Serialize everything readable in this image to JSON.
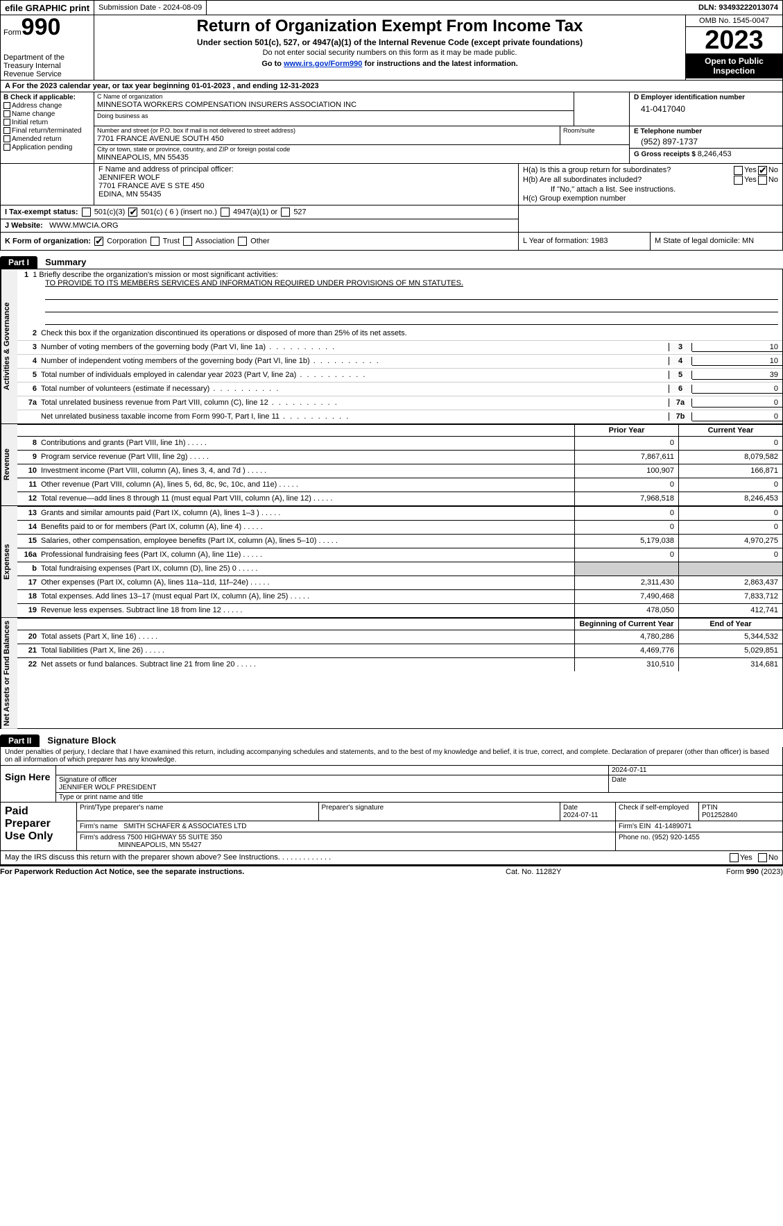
{
  "topbar": {
    "efile": "efile GRAPHIC print",
    "submission": "Submission Date - 2024-08-09",
    "dln": "DLN: 93493222013074"
  },
  "header": {
    "form_label": "Form",
    "form_number": "990",
    "dept": "Department of the Treasury Internal Revenue Service",
    "title": "Return of Organization Exempt From Income Tax",
    "sub1": "Under section 501(c), 527, or 4947(a)(1) of the Internal Revenue Code (except private foundations)",
    "sub2": "Do not enter social security numbers on this form as it may be made public.",
    "sub3_pre": "Go to ",
    "sub3_link": "www.irs.gov/Form990",
    "sub3_post": " for instructions and the latest information.",
    "omb": "OMB No. 1545-0047",
    "year": "2023",
    "open": "Open to Public Inspection"
  },
  "rowA": "For the 2023 calendar year, or tax year beginning 01-01-2023   , and ending 12-31-2023",
  "boxB": {
    "label": "B Check if applicable:",
    "items": [
      "Address change",
      "Name change",
      "Initial return",
      "Final return/terminated",
      "Amended return",
      "Application pending"
    ]
  },
  "boxC": {
    "name_lbl": "C Name of organization",
    "name_val": "MINNESOTA WORKERS COMPENSATION INSURERS ASSOCIATION INC",
    "dba_lbl": "Doing business as",
    "addr_lbl": "Number and street (or P.O. box if mail is not delivered to street address)",
    "addr_val": "7701 FRANCE AVENUE SOUTH 450",
    "room_lbl": "Room/suite",
    "city_lbl": "City or town, state or province, country, and ZIP or foreign postal code",
    "city_val": "MINNEAPOLIS, MN  55435"
  },
  "boxD": {
    "lbl": "D Employer identification number",
    "val": "41-0417040"
  },
  "boxE": {
    "lbl": "E Telephone number",
    "val": "(952) 897-1737"
  },
  "boxG": {
    "lbl": "G Gross receipts $ ",
    "val": "8,246,453"
  },
  "boxF": {
    "lbl": "F  Name and address of principal officer:",
    "name": "JENNIFER WOLF",
    "addr1": "7701 FRANCE AVE S STE 450",
    "addr2": "EDINA, MN  55435"
  },
  "boxH": {
    "ha": "H(a)  Is this a group return for subordinates?",
    "hb": "H(b)  Are all subordinates included?",
    "hb_note": "If \"No,\" attach a list. See instructions.",
    "hc": "H(c)  Group exemption number",
    "yes": "Yes",
    "no": "No"
  },
  "rowI": {
    "lbl": "I   Tax-exempt status:",
    "opts": [
      "501(c)(3)",
      "501(c) ( 6 ) (insert no.)",
      "4947(a)(1) or",
      "527"
    ]
  },
  "rowJ": {
    "lbl": "J   Website:",
    "val": "WWW.MWCIA.ORG"
  },
  "rowK": {
    "lbl": "K Form of organization:",
    "opts": [
      "Corporation",
      "Trust",
      "Association",
      "Other"
    ],
    "L": "L Year of formation: 1983",
    "M": "M State of legal domicile: MN"
  },
  "part1": {
    "hdr": "Part I",
    "title": "Summary",
    "side_gov": "Activities & Governance",
    "side_rev": "Revenue",
    "side_exp": "Expenses",
    "side_net": "Net Assets or Fund Balances",
    "line1_lbl": "1  Briefly describe the organization's mission or most significant activities:",
    "line1_val": "TO PROVIDE TO ITS MEMBERS SERVICES AND INFORMATION REQUIRED UNDER PROVISIONS OF MN STATUTES.",
    "line2": "Check this box       if the organization discontinued its operations or disposed of more than 25% of its net assets.",
    "rows_gov": [
      {
        "n": "3",
        "d": "Number of voting members of the governing body (Part VI, line 1a)",
        "c": "3",
        "v": "10"
      },
      {
        "n": "4",
        "d": "Number of independent voting members of the governing body (Part VI, line 1b)",
        "c": "4",
        "v": "10"
      },
      {
        "n": "5",
        "d": "Total number of individuals employed in calendar year 2023 (Part V, line 2a)",
        "c": "5",
        "v": "39"
      },
      {
        "n": "6",
        "d": "Total number of volunteers (estimate if necessary)",
        "c": "6",
        "v": "0"
      },
      {
        "n": "7a",
        "d": "Total unrelated business revenue from Part VIII, column (C), line 12",
        "c": "7a",
        "v": "0"
      },
      {
        "n": "",
        "d": "Net unrelated business taxable income from Form 990-T, Part I, line 11",
        "c": "7b",
        "v": "0"
      }
    ],
    "prior": "Prior Year",
    "current": "Current Year",
    "rows_rev": [
      {
        "n": "8",
        "d": "Contributions and grants (Part VIII, line 1h)",
        "p": "0",
        "c": "0"
      },
      {
        "n": "9",
        "d": "Program service revenue (Part VIII, line 2g)",
        "p": "7,867,611",
        "c": "8,079,582"
      },
      {
        "n": "10",
        "d": "Investment income (Part VIII, column (A), lines 3, 4, and 7d )",
        "p": "100,907",
        "c": "166,871"
      },
      {
        "n": "11",
        "d": "Other revenue (Part VIII, column (A), lines 5, 6d, 8c, 9c, 10c, and 11e)",
        "p": "0",
        "c": "0"
      },
      {
        "n": "12",
        "d": "Total revenue—add lines 8 through 11 (must equal Part VIII, column (A), line 12)",
        "p": "7,968,518",
        "c": "8,246,453"
      }
    ],
    "rows_exp": [
      {
        "n": "13",
        "d": "Grants and similar amounts paid (Part IX, column (A), lines 1–3 )",
        "p": "0",
        "c": "0"
      },
      {
        "n": "14",
        "d": "Benefits paid to or for members (Part IX, column (A), line 4)",
        "p": "0",
        "c": "0"
      },
      {
        "n": "15",
        "d": "Salaries, other compensation, employee benefits (Part IX, column (A), lines 5–10)",
        "p": "5,179,038",
        "c": "4,970,275"
      },
      {
        "n": "16a",
        "d": "Professional fundraising fees (Part IX, column (A), line 11e)",
        "p": "0",
        "c": "0"
      },
      {
        "n": "b",
        "d": "Total fundraising expenses (Part IX, column (D), line 25) 0",
        "p": "",
        "c": "",
        "grey": true
      },
      {
        "n": "17",
        "d": "Other expenses (Part IX, column (A), lines 11a–11d, 11f–24e)",
        "p": "2,311,430",
        "c": "2,863,437"
      },
      {
        "n": "18",
        "d": "Total expenses. Add lines 13–17 (must equal Part IX, column (A), line 25)",
        "p": "7,490,468",
        "c": "7,833,712"
      },
      {
        "n": "19",
        "d": "Revenue less expenses. Subtract line 18 from line 12",
        "p": "478,050",
        "c": "412,741"
      }
    ],
    "begin": "Beginning of Current Year",
    "end": "End of Year",
    "rows_net": [
      {
        "n": "20",
        "d": "Total assets (Part X, line 16)",
        "p": "4,780,286",
        "c": "5,344,532"
      },
      {
        "n": "21",
        "d": "Total liabilities (Part X, line 26)",
        "p": "4,469,776",
        "c": "5,029,851"
      },
      {
        "n": "22",
        "d": "Net assets or fund balances. Subtract line 21 from line 20",
        "p": "310,510",
        "c": "314,681"
      }
    ]
  },
  "part2": {
    "hdr": "Part II",
    "title": "Signature Block",
    "decl": "Under penalties of perjury, I declare that I have examined this return, including accompanying schedules and statements, and to the best of my knowledge and belief, it is true, correct, and complete. Declaration of preparer (other than officer) is based on all information of which preparer has any knowledge.",
    "sign_here": "Sign Here",
    "sig_officer_lbl": "Signature of officer",
    "sig_officer_val": "JENNIFER WOLF  PRESIDENT",
    "sig_type_lbl": "Type or print name and title",
    "date_lbl": "Date",
    "date_val": "2024-07-11",
    "paid": "Paid Preparer Use Only",
    "prep_name_lbl": "Print/Type preparer's name",
    "prep_sig_lbl": "Preparer's signature",
    "prep_date": "2024-07-11",
    "prep_check": "Check       if self-employed",
    "ptin_lbl": "PTIN",
    "ptin": "P01252840",
    "firm_name_lbl": "Firm's name",
    "firm_name": "SMITH SCHAFER & ASSOCIATES LTD",
    "firm_ein_lbl": "Firm's EIN",
    "firm_ein": "41-1489071",
    "firm_addr_lbl": "Firm's address",
    "firm_addr1": "7500 HIGHWAY 55 SUITE 350",
    "firm_addr2": "MINNEAPOLIS, MN  55427",
    "phone_lbl": "Phone no.",
    "phone": "(952) 920-1455",
    "discuss": "May the IRS discuss this return with the preparer shown above? See Instructions.",
    "yes": "Yes",
    "no": "No"
  },
  "footer": {
    "l": "For Paperwork Reduction Act Notice, see the separate instructions.",
    "c": "Cat. No. 11282Y",
    "r_pre": "Form ",
    "r_form": "990",
    "r_post": " (2023)"
  }
}
